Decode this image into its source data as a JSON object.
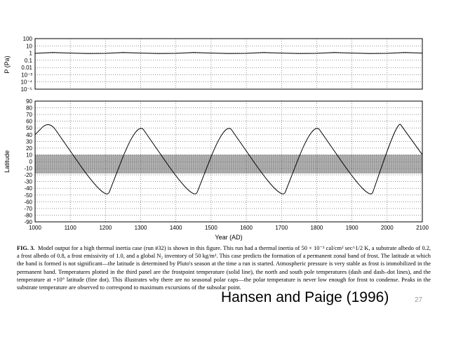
{
  "chart_data": [
    {
      "type": "line",
      "ylabel": "P (Pa)",
      "yscale": "log",
      "xlim": [
        1000,
        2100
      ],
      "ylim": [
        1e-05,
        100
      ],
      "y_ticks": [
        "100",
        "10",
        "1",
        "0.1",
        "0.01",
        "10⁻³",
        "10⁻⁴",
        "10⁻⁵"
      ],
      "grid": true,
      "series": [
        {
          "x": [
            1000,
            1050,
            1100,
            1150,
            1200,
            1250,
            1300,
            1350,
            1400,
            1450,
            1500,
            1550,
            1600,
            1650,
            1700,
            1750,
            1800,
            1850,
            1900,
            1950,
            2000,
            2050,
            2100
          ],
          "y": [
            0.9,
            1.2,
            1.0,
            0.85,
            0.9,
            1.2,
            1.0,
            0.85,
            0.9,
            1.2,
            1.0,
            0.85,
            0.9,
            1.2,
            1.0,
            0.85,
            0.9,
            1.2,
            1.0,
            0.85,
            0.9,
            1.2,
            1.0
          ]
        }
      ]
    },
    {
      "type": "line",
      "xlabel": "Year (AD)",
      "ylabel": "Latitude",
      "xlim": [
        1000,
        2100
      ],
      "ylim": [
        -90,
        90
      ],
      "x_ticks": [
        1000,
        1100,
        1200,
        1300,
        1400,
        1500,
        1600,
        1700,
        1800,
        1900,
        2000,
        2100
      ],
      "y_ticks": [
        90,
        80,
        70,
        60,
        50,
        40,
        30,
        20,
        10,
        0,
        -10,
        -20,
        -30,
        -40,
        -50,
        -60,
        -70,
        -80,
        -90
      ],
      "grid": true,
      "band": {
        "lat_min": -18,
        "lat_max": 10
      },
      "series": [
        {
          "x": [
            1000,
            1040,
            1200,
            1290,
            1450,
            1540,
            1700,
            1790,
            1950,
            2030,
            2100
          ],
          "y": [
            40,
            61,
            -60,
            61,
            -60,
            61,
            -60,
            61,
            -60,
            61,
            10
          ]
        }
      ]
    }
  ],
  "caption": {
    "label": "FIG. 3.",
    "text": "Model output for a high thermal inertia case (run #32) is shown in this figure. This run had a thermal inertia of 50 × 10⁻³ cal/cm² sec^1/2 K, a substrate albedo of 0.2, a frost albedo of 0.8, a frost emissivity of 1.0, and a global N₂ inventory of 50 kg/m². This case predicts the formation of a permanent zonal band of frost. The latitude at which the band is formed is not significant—the latitude is determined by Pluto's season at the time a run is started. Atmospheric pressure is very stable as frost is immobilized in the permanent band. Temperatures plotted in the third panel are the frostpoint temperature (solid line), the north and south pole temperatures (dash and dash–dot lines), and the temperature at +10° latitude (fine dot). This illustrates why there are no seasonal polar caps—the polar temperature is never low enough for frost to condense. Peaks in the substrate temperature are observed to correspond to maximum excursions of the subsolar point."
  },
  "credit": "Hansen and Paige (1996)",
  "slide_number": "27"
}
